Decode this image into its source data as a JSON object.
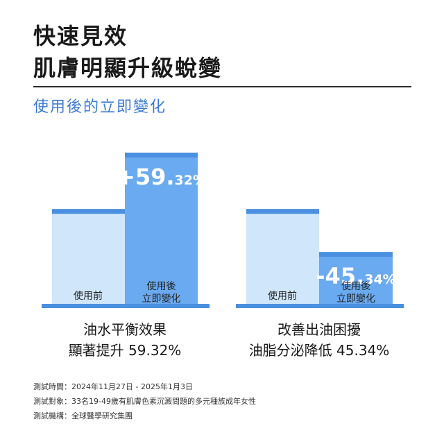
{
  "header": {
    "title_line1": "快速見效",
    "title_line2": "肌膚明顯升級蛻變",
    "subtitle": "使用後的立即變化"
  },
  "chart_data": [
    {
      "type": "bar",
      "categories": [
        "使用前",
        "使用後\n立即變化"
      ],
      "values": [
        100,
        159.32
      ],
      "change_label_main": "+59.",
      "change_label_decimal": "32%",
      "caption_line1": "油水平衡效果",
      "caption_line2": "顯著提升 59.32%",
      "colors": {
        "before": "#cfe6fb",
        "after": "#6aaaf0",
        "cap": "#4a8fe0"
      }
    },
    {
      "type": "bar",
      "categories": [
        "使用前",
        "使用後\n立即變化"
      ],
      "values": [
        100,
        54.66
      ],
      "change_label_main": "-45.",
      "change_label_decimal": "34%",
      "caption_line1": "改善出油困擾",
      "caption_line2": "油脂分泌降低 45.34%",
      "colors": {
        "before": "#cfe6fb",
        "after": "#6aaaf0",
        "cap": "#4a8fe0"
      }
    }
  ],
  "labels": {
    "before": "使用前",
    "after_line1": "使用後",
    "after_line2": "立即變化"
  },
  "footnotes": {
    "period": "測試時間：2024年11月27日 - 2025年1月3日",
    "subjects": "測試對象：33名19-49歲有肌膚色素沉澱問題的多元種族成年女性",
    "institution": "測試機構：全球醫學研究集團"
  }
}
